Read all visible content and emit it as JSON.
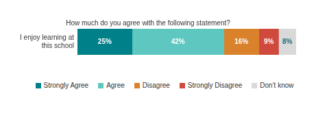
{
  "chart_data": {
    "type": "bar",
    "orientation": "horizontal",
    "stacked": true,
    "title": "How much do you agree with the following statement?",
    "categories": [
      "I enjoy learning at this school"
    ],
    "series": [
      {
        "name": "Strongly Agree",
        "color": "#00818a",
        "values": [
          25
        ],
        "value_labels": [
          "25%"
        ]
      },
      {
        "name": "Agree",
        "color": "#5ec7bf",
        "values": [
          42
        ],
        "value_labels": [
          "42%"
        ]
      },
      {
        "name": "Disagree",
        "color": "#d9822b",
        "values": [
          16
        ],
        "value_labels": [
          "16%"
        ]
      },
      {
        "name": "Strongly Disagree",
        "color": "#cf4a3c",
        "values": [
          9
        ],
        "value_labels": [
          "9%"
        ]
      },
      {
        "name": "Don't know",
        "color": "#d9d9d9",
        "values": [
          8
        ],
        "value_labels": [
          "8%"
        ]
      }
    ],
    "xlim": [
      0,
      100
    ],
    "grid": false,
    "legend": "bottom",
    "data_labels": true,
    "tick_labels": "y"
  }
}
